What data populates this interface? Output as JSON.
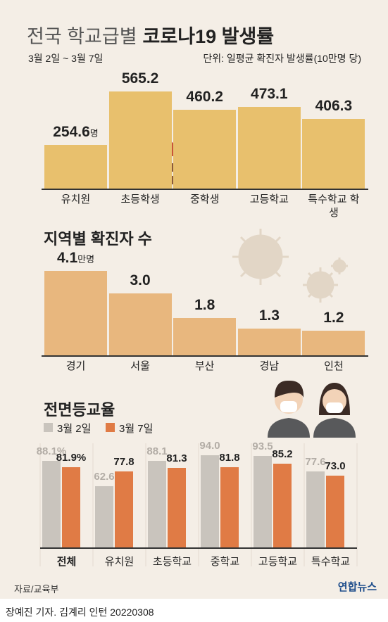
{
  "chart_data": [
    {
      "type": "bar",
      "title": "전국 학교급별",
      "title_emphasis": "코로나19 발생률",
      "subtitle": "3월 2일 ~ 3월 7일",
      "unit_note": "단위: 일평균 확진자 발생률(10만명 당)",
      "categories": [
        "유치원",
        "초등학생",
        "중학생",
        "고등학교",
        "특수학교 학생"
      ],
      "values": [
        254.6,
        565.2,
        460.2,
        473.1,
        406.3
      ],
      "value_unit": "명",
      "color": "#e8c06d"
    },
    {
      "type": "bar",
      "title": "지역별 확진자 수",
      "categories": [
        "경기",
        "서울",
        "부산",
        "경남",
        "인천"
      ],
      "values": [
        4.1,
        3.0,
        1.8,
        1.3,
        1.2
      ],
      "value_labels": [
        "4.1",
        "3.0",
        "1.8",
        "1.3",
        "1.2"
      ],
      "value_unit": "만명",
      "color": "#e8b77e"
    },
    {
      "type": "grouped_bar",
      "title": "전면등교율",
      "categories": [
        "전체",
        "유치원",
        "초등학교",
        "중학교",
        "고등학교",
        "특수학교"
      ],
      "series": [
        {
          "name": "3월 2일",
          "color": "#c9c4bd",
          "values": [
            88.1,
            62.6,
            88.1,
            94.0,
            93.5,
            77.6
          ],
          "value_labels": [
            "88.1%",
            "62.6",
            "88.1",
            "94.0",
            "93.5",
            "77.6"
          ]
        },
        {
          "name": "3월 7일",
          "color": "#e07b45",
          "values": [
            81.9,
            77.8,
            81.3,
            81.8,
            85.2,
            73.0
          ],
          "value_labels": [
            "81.9%",
            "77.8",
            "81.3",
            "81.8",
            "85.2",
            "73.0"
          ]
        }
      ]
    }
  ],
  "source": "자료/교육부",
  "logo": "연합뉴스",
  "credit": "장예진 기자. 김계리 인턴  20220308"
}
